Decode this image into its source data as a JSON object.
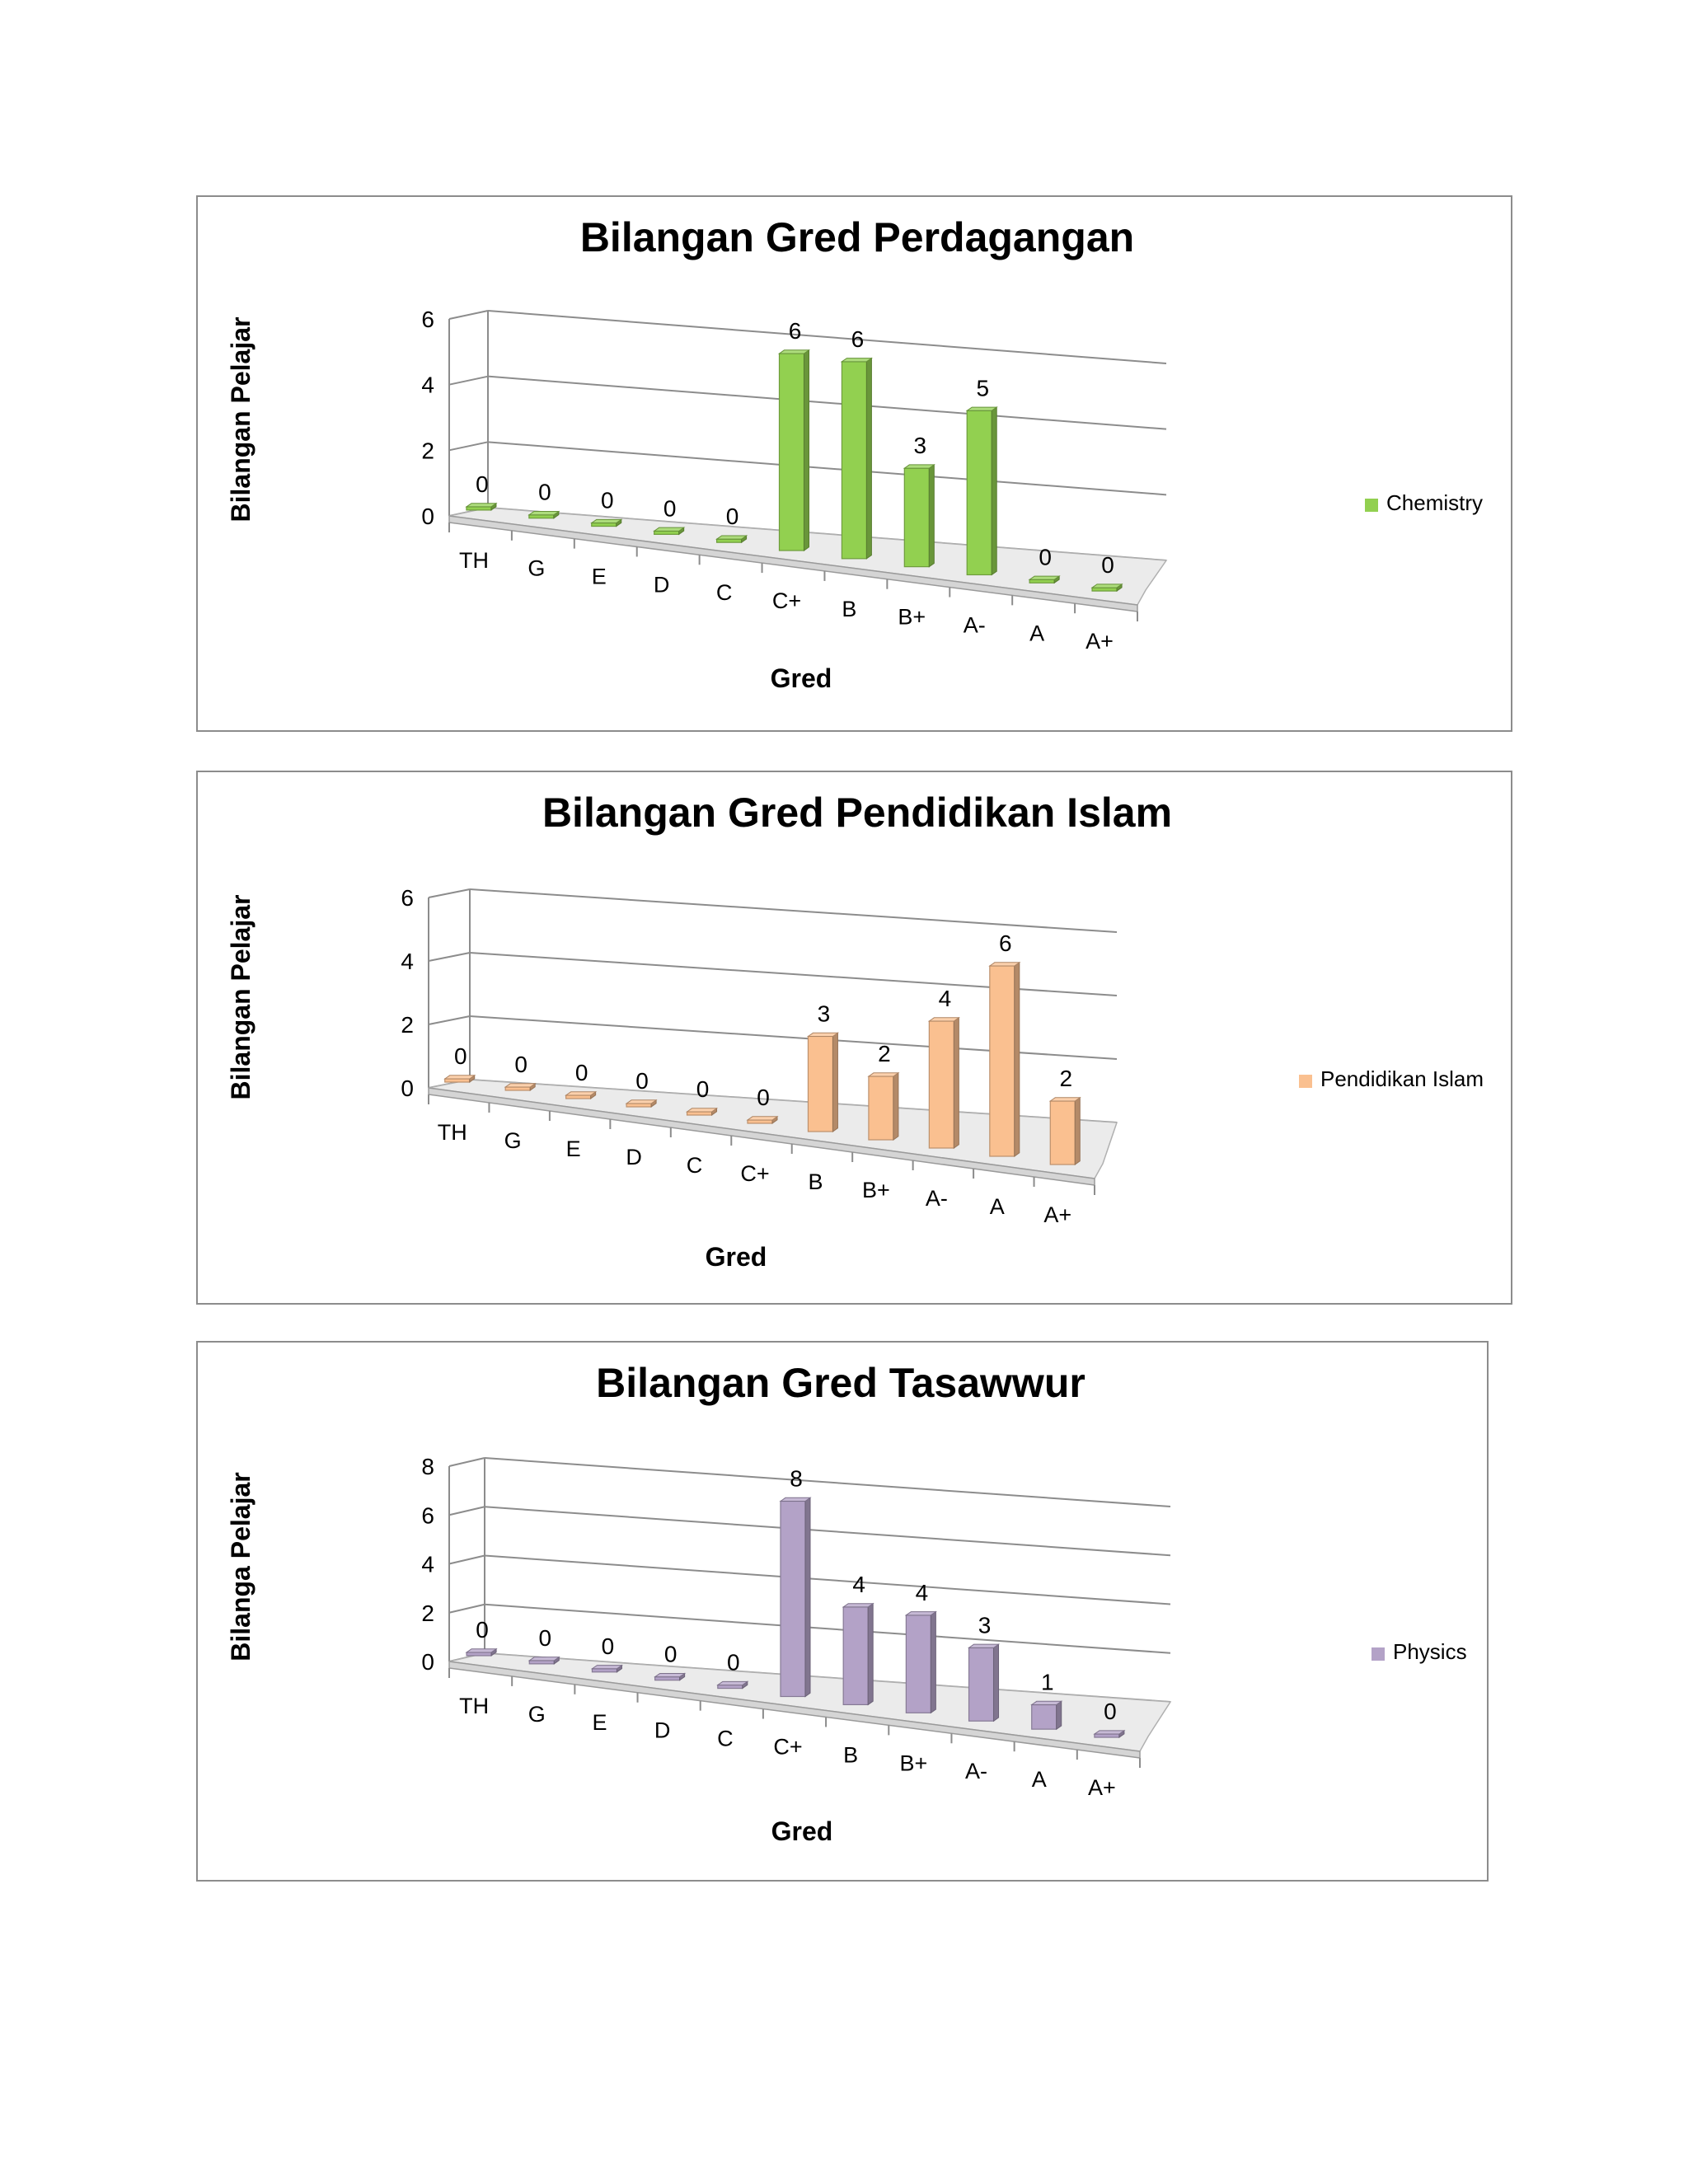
{
  "chart_data": [
    {
      "type": "bar",
      "title": "Bilangan Gred Perdagangan",
      "xlabel": "Gred",
      "ylabel": "Bilangan Pelajar",
      "categories": [
        "TH",
        "G",
        "E",
        "D",
        "C",
        "C+",
        "B",
        "B+",
        "A-",
        "A",
        "A+"
      ],
      "yticks": [
        "0",
        "2",
        "4",
        "6"
      ],
      "ylim": [
        0,
        6
      ],
      "series": [
        {
          "name": "Chemistry",
          "values": [
            0,
            0,
            0,
            0,
            0,
            6,
            6,
            3,
            5,
            0,
            0
          ],
          "color": "#92d050"
        }
      ],
      "grid": true,
      "legend": "right"
    },
    {
      "type": "bar",
      "title": "Bilangan Gred Pendidikan Islam",
      "xlabel": "Gred",
      "ylabel": "Bilangan Pelajar",
      "categories": [
        "TH",
        "G",
        "E",
        "D",
        "C",
        "C+",
        "B",
        "B+",
        "A-",
        "A",
        "A+"
      ],
      "yticks": [
        "0",
        "2",
        "4",
        "6"
      ],
      "ylim": [
        0,
        6
      ],
      "series": [
        {
          "name": "Pendidikan Islam",
          "values": [
            0,
            0,
            0,
            0,
            0,
            0,
            3,
            2,
            4,
            6,
            2
          ],
          "color": "#fac090"
        }
      ],
      "grid": true,
      "legend": "right"
    },
    {
      "type": "bar",
      "title": "Bilangan Gred Tasawwur",
      "xlabel": "Gred",
      "ylabel": "Bilanga Pelajar",
      "categories": [
        "TH",
        "G",
        "E",
        "D",
        "C",
        "C+",
        "B",
        "B+",
        "A-",
        "A",
        "A+"
      ],
      "yticks": [
        "0",
        "2",
        "4",
        "6",
        "8"
      ],
      "ylim": [
        0,
        8
      ],
      "series": [
        {
          "name": "Physics",
          "values": [
            0,
            0,
            0,
            0,
            0,
            8,
            4,
            4,
            3,
            1,
            0
          ],
          "color": "#b3a2c7"
        }
      ],
      "grid": true,
      "legend": "right"
    }
  ]
}
